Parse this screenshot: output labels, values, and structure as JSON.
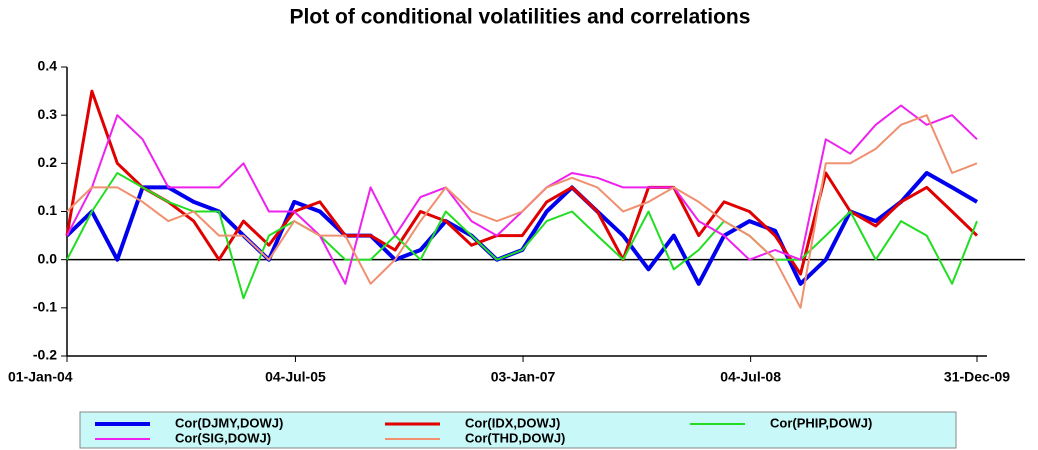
{
  "chart_data": {
    "type": "line",
    "title": "Plot of conditional volatilities and correlations",
    "x": [
      "01-Jan-04",
      "01-Mar-04",
      "01-May-04",
      "01-Jul-04",
      "01-Sep-04",
      "01-Nov-04",
      "01-Jan-05",
      "01-Mar-05",
      "01-May-05",
      "01-Jul-05",
      "01-Sep-05",
      "01-Nov-05",
      "01-Jan-06",
      "01-Mar-06",
      "01-May-06",
      "01-Jul-06",
      "01-Sep-06",
      "01-Nov-06",
      "01-Jan-07",
      "01-Mar-07",
      "01-May-07",
      "01-Jul-07",
      "01-Sep-07",
      "01-Nov-07",
      "01-Jan-08",
      "01-Mar-08",
      "01-May-08",
      "01-Jul-08",
      "01-Sep-08",
      "01-Nov-08",
      "01-Jan-09",
      "01-Mar-09",
      "01-May-09",
      "01-Jul-09",
      "01-Sep-09",
      "01-Nov-09",
      "31-Dec-09"
    ],
    "xlim": [
      "01-Jan-04",
      "31-Dec-09"
    ],
    "xticks": [
      "01-Jan-04",
      "04-Jul-05",
      "03-Jan-07",
      "04-Jul-08",
      "31-Dec-09"
    ],
    "ylim": [
      -0.2,
      0.4
    ],
    "yticks": [
      0.4,
      0.3,
      0.2,
      0.1,
      {
        "value": 0,
        "label": "0.0"
      },
      -0.1,
      -0.2
    ],
    "series": [
      {
        "name": "Cor(DJMY,DOWJ)",
        "color": "#0000ee",
        "width": 4,
        "values": [
          0.05,
          0.1,
          0.0,
          0.15,
          0.15,
          0.12,
          0.1,
          0.05,
          0.0,
          0.12,
          0.1,
          0.05,
          0.05,
          0.0,
          0.02,
          0.08,
          0.05,
          0.0,
          0.02,
          0.1,
          0.15,
          0.1,
          0.05,
          -0.02,
          0.05,
          -0.05,
          0.05,
          0.08,
          0.06,
          -0.05,
          0.0,
          0.1,
          0.08,
          0.12,
          0.18,
          0.15,
          0.12
        ]
      },
      {
        "name": "Cor(IDX,DOWJ)",
        "color": "#e00000",
        "width": 3,
        "values": [
          0.05,
          0.35,
          0.2,
          0.15,
          0.12,
          0.08,
          0.0,
          0.08,
          0.03,
          0.1,
          0.12,
          0.05,
          0.05,
          0.02,
          0.1,
          0.08,
          0.03,
          0.05,
          0.05,
          0.12,
          0.15,
          0.1,
          0.0,
          0.15,
          0.15,
          0.05,
          0.12,
          0.1,
          0.05,
          -0.03,
          0.18,
          0.1,
          0.07,
          0.12,
          0.15,
          0.1,
          0.05
        ]
      },
      {
        "name": "Cor(PHIP,DOWJ)",
        "color": "#22dd22",
        "width": 2,
        "values": [
          0.0,
          0.1,
          0.18,
          0.15,
          0.12,
          0.1,
          0.1,
          -0.08,
          0.05,
          0.08,
          0.05,
          0.0,
          0.0,
          0.05,
          0.0,
          0.1,
          0.05,
          0.0,
          0.02,
          0.08,
          0.1,
          0.05,
          0.0,
          0.1,
          -0.02,
          0.02,
          0.08,
          0.05,
          0.0,
          0.0,
          0.05,
          0.1,
          0.0,
          0.08,
          0.05,
          -0.05,
          0.08
        ]
      },
      {
        "name": "Cor(SIG,DOWJ)",
        "color": "#ee22ee",
        "width": 2,
        "values": [
          0.05,
          0.15,
          0.3,
          0.25,
          0.15,
          0.15,
          0.15,
          0.2,
          0.1,
          0.1,
          0.05,
          -0.05,
          0.15,
          0.05,
          0.13,
          0.15,
          0.08,
          0.05,
          0.1,
          0.15,
          0.18,
          0.17,
          0.15,
          0.15,
          0.15,
          0.08,
          0.05,
          0.0,
          0.02,
          0.0,
          0.25,
          0.22,
          0.28,
          0.32,
          0.28,
          0.3,
          0.25
        ]
      },
      {
        "name": "Cor(THD,DOWJ)",
        "color": "#f09070",
        "width": 2,
        "values": [
          0.1,
          0.15,
          0.15,
          0.12,
          0.08,
          0.1,
          0.05,
          0.05,
          0.0,
          0.08,
          0.05,
          0.05,
          -0.05,
          0.0,
          0.08,
          0.15,
          0.1,
          0.08,
          0.1,
          0.15,
          0.17,
          0.15,
          0.1,
          0.12,
          0.15,
          0.12,
          0.08,
          0.05,
          0.0,
          -0.1,
          0.2,
          0.2,
          0.23,
          0.28,
          0.3,
          0.18,
          0.2
        ]
      }
    ]
  }
}
